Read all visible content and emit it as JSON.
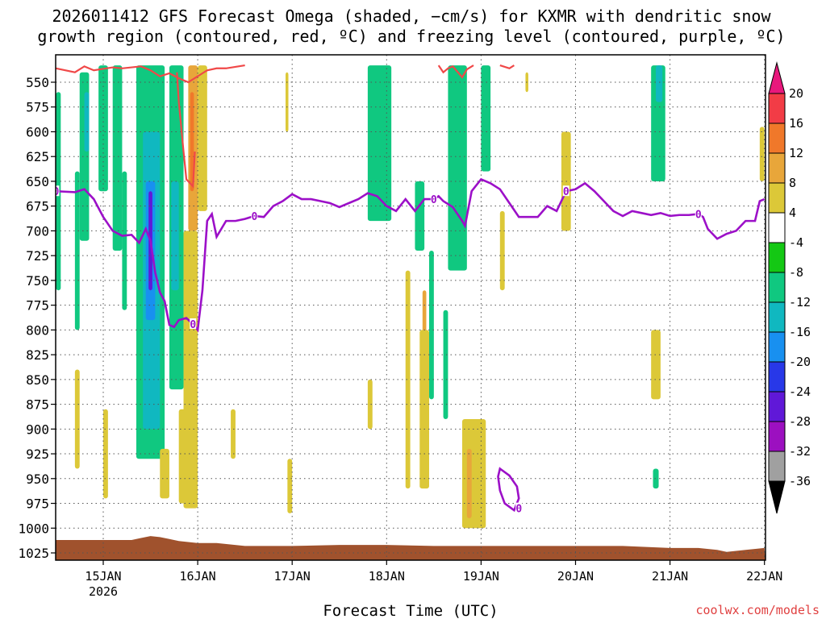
{
  "chart_data": {
    "type": "heatmap",
    "title_line1": "2026011412 GFS Forecast Omega (shaded, −cm/s) for KXMR with dendritic snow",
    "title_line2": "growth region (contoured, red, ºC) and freezing level (contoured, purple, ºC)",
    "xlabel": "Forecast Time (UTC)",
    "x_ticks": [
      {
        "t": 0,
        "label": "15JAN",
        "sub": "2026"
      },
      {
        "t": 1,
        "label": "16JAN",
        "sub": ""
      },
      {
        "t": 2,
        "label": "17JAN",
        "sub": ""
      },
      {
        "t": 3,
        "label": "18JAN",
        "sub": ""
      },
      {
        "t": 4,
        "label": "19JAN",
        "sub": ""
      },
      {
        "t": 5,
        "label": "20JAN",
        "sub": ""
      },
      {
        "t": 6,
        "label": "21JAN",
        "sub": ""
      },
      {
        "t": 7,
        "label": "22JAN",
        "sub": ""
      }
    ],
    "xlim": [
      -0.5,
      7.0
    ],
    "y_ticks": [
      550,
      575,
      600,
      625,
      650,
      675,
      700,
      725,
      750,
      775,
      800,
      825,
      850,
      875,
      900,
      925,
      950,
      975,
      1000,
      1025
    ],
    "ylim_hpa": [
      530,
      1035
    ],
    "colorbar": {
      "labels": [
        "20",
        "16",
        "12",
        "8",
        "4",
        "-4",
        "-8",
        "-12",
        "-16",
        "-20",
        "-24",
        "-28",
        "-32",
        "-36"
      ],
      "colors": [
        "#f23c46",
        "#f0782a",
        "#e8a63a",
        "#dcc838",
        "#ffffff",
        "#14c814",
        "#10c880",
        "#10b8c0",
        "#1890f0",
        "#2838e8",
        "#6018d8",
        "#9c10c0",
        "#a0a0a0"
      ],
      "top_arrow": "#e8187c",
      "bottom_arrow": "#000000"
    },
    "freezing_level": {
      "label": "0",
      "color": "#9c10c8",
      "points": [
        [
          -0.5,
          660
        ],
        [
          -0.3,
          661
        ],
        [
          -0.2,
          658
        ],
        [
          -0.1,
          668
        ],
        [
          0.0,
          686
        ],
        [
          0.1,
          700
        ],
        [
          0.2,
          705
        ],
        [
          0.3,
          704
        ],
        [
          0.38,
          712
        ],
        [
          0.45,
          698
        ],
        [
          0.5,
          710
        ],
        [
          0.55,
          742
        ],
        [
          0.6,
          762
        ],
        [
          0.65,
          771
        ],
        [
          0.7,
          795
        ],
        [
          0.75,
          797
        ],
        [
          0.8,
          790
        ],
        [
          0.88,
          788
        ],
        [
          0.95,
          794
        ],
        [
          1.0,
          800
        ],
        [
          1.05,
          760
        ],
        [
          1.1,
          690
        ],
        [
          1.15,
          683
        ],
        [
          1.2,
          706
        ],
        [
          1.3,
          690
        ],
        [
          1.4,
          690
        ],
        [
          1.5,
          688
        ],
        [
          1.6,
          685
        ],
        [
          1.7,
          686
        ],
        [
          1.8,
          675
        ],
        [
          1.9,
          670
        ],
        [
          2.0,
          663
        ],
        [
          2.1,
          668
        ],
        [
          2.2,
          668
        ],
        [
          2.3,
          670
        ],
        [
          2.4,
          672
        ],
        [
          2.5,
          676
        ],
        [
          2.6,
          672
        ],
        [
          2.7,
          668
        ],
        [
          2.8,
          662
        ],
        [
          2.9,
          665
        ],
        [
          3.0,
          675
        ],
        [
          3.1,
          680
        ],
        [
          3.2,
          668
        ],
        [
          3.3,
          680
        ],
        [
          3.4,
          668
        ],
        [
          3.5,
          668
        ],
        [
          3.55,
          665
        ],
        [
          3.6,
          670
        ],
        [
          3.7,
          676
        ],
        [
          3.8,
          690
        ],
        [
          3.83,
          695
        ],
        [
          3.9,
          660
        ],
        [
          4.0,
          648
        ],
        [
          4.1,
          652
        ],
        [
          4.2,
          658
        ],
        [
          4.3,
          672
        ],
        [
          4.4,
          686
        ],
        [
          4.5,
          686
        ],
        [
          4.6,
          686
        ],
        [
          4.7,
          675
        ],
        [
          4.8,
          680
        ],
        [
          4.9,
          660
        ],
        [
          5.0,
          658
        ],
        [
          5.1,
          652
        ],
        [
          5.2,
          660
        ],
        [
          5.3,
          670
        ],
        [
          5.4,
          680
        ],
        [
          5.5,
          685
        ],
        [
          5.6,
          680
        ],
        [
          5.7,
          682
        ],
        [
          5.8,
          684
        ],
        [
          5.9,
          682
        ],
        [
          6.0,
          685
        ],
        [
          6.1,
          684
        ],
        [
          6.2,
          684
        ],
        [
          6.3,
          683
        ],
        [
          6.35,
          686
        ],
        [
          6.4,
          698
        ],
        [
          6.5,
          708
        ],
        [
          6.6,
          703
        ],
        [
          6.7,
          700
        ],
        [
          6.8,
          690
        ],
        [
          6.9,
          690
        ],
        [
          6.95,
          670
        ],
        [
          7.0,
          668
        ]
      ]
    },
    "freezing_loop": [
      [
        4.2,
        940
      ],
      [
        4.3,
        947
      ],
      [
        4.38,
        958
      ],
      [
        4.4,
        970
      ],
      [
        4.35,
        982
      ],
      [
        4.25,
        975
      ],
      [
        4.2,
        962
      ],
      [
        4.18,
        948
      ]
    ],
    "dgz_contours": [
      {
        "points": [
          [
            -0.5,
            536
          ],
          [
            -0.3,
            540
          ],
          [
            -0.2,
            534
          ],
          [
            -0.1,
            538
          ],
          [
            0.1,
            535
          ],
          [
            0.2,
            536
          ],
          [
            0.4,
            534
          ],
          [
            0.5,
            538
          ],
          [
            0.6,
            544
          ],
          [
            0.7,
            541
          ],
          [
            0.8,
            546
          ],
          [
            0.9,
            550
          ],
          [
            1.0,
            544
          ],
          [
            1.1,
            538
          ],
          [
            1.2,
            536
          ],
          [
            1.3,
            536
          ],
          [
            1.5,
            533
          ]
        ]
      },
      {
        "points": [
          [
            0.78,
            540
          ],
          [
            0.8,
            570
          ],
          [
            0.85,
            620
          ],
          [
            0.88,
            648
          ],
          [
            0.95,
            655
          ],
          [
            0.97,
            620
          ]
        ]
      },
      {
        "points": [
          [
            3.55,
            533
          ],
          [
            3.6,
            540
          ],
          [
            3.65,
            536
          ],
          [
            3.7,
            534
          ],
          [
            3.8,
            545
          ],
          [
            3.85,
            537
          ],
          [
            3.92,
            533
          ]
        ]
      },
      {
        "points": [
          [
            4.2,
            533
          ],
          [
            4.3,
            536
          ],
          [
            4.35,
            533
          ]
        ]
      }
    ],
    "omega_regions": [
      {
        "v": -8,
        "x0": -0.5,
        "x1": -0.45,
        "y0": 560,
        "y1": 760
      },
      {
        "v": -8,
        "x0": -0.3,
        "x1": -0.25,
        "y0": 640,
        "y1": 800
      },
      {
        "v": -8,
        "x0": -0.25,
        "x1": -0.15,
        "y0": 540,
        "y1": 710
      },
      {
        "v": -12,
        "x0": -0.2,
        "x1": -0.15,
        "y0": 560,
        "y1": 620
      },
      {
        "v": -8,
        "x0": -0.05,
        "x1": 0.05,
        "y0": 533,
        "y1": 660
      },
      {
        "v": -8,
        "x0": 0.1,
        "x1": 0.2,
        "y0": 533,
        "y1": 720
      },
      {
        "v": -8,
        "x0": 0.2,
        "x1": 0.25,
        "y0": 640,
        "y1": 780
      },
      {
        "v": -8,
        "x0": 0.35,
        "x1": 0.65,
        "y0": 533,
        "y1": 930
      },
      {
        "v": -12,
        "x0": 0.42,
        "x1": 0.6,
        "y0": 600,
        "y1": 900
      },
      {
        "v": -16,
        "x0": 0.45,
        "x1": 0.55,
        "y0": 650,
        "y1": 790
      },
      {
        "v": -24,
        "x0": 0.48,
        "x1": 0.52,
        "y0": 660,
        "y1": 760
      },
      {
        "v": -8,
        "x0": 0.7,
        "x1": 0.85,
        "y0": 533,
        "y1": 860
      },
      {
        "v": -12,
        "x0": 0.72,
        "x1": 0.8,
        "y0": 650,
        "y1": 760
      },
      {
        "v": 8,
        "x0": 0.9,
        "x1": 1.0,
        "y0": 533,
        "y1": 700
      },
      {
        "v": 12,
        "x0": 0.92,
        "x1": 0.96,
        "y0": 560,
        "y1": 660
      },
      {
        "v": 4,
        "x0": 0.85,
        "x1": 1.0,
        "y0": 700,
        "y1": 980
      },
      {
        "v": 4,
        "x0": 1.0,
        "x1": 1.1,
        "y0": 533,
        "y1": 680
      },
      {
        "v": 4,
        "x0": 0.6,
        "x1": 0.7,
        "y0": 920,
        "y1": 970
      },
      {
        "v": 4,
        "x0": -0.3,
        "x1": -0.25,
        "y0": 840,
        "y1": 940
      },
      {
        "v": 4,
        "x0": 0.0,
        "x1": 0.05,
        "y0": 880,
        "y1": 970
      },
      {
        "v": 4,
        "x0": 0.8,
        "x1": 0.9,
        "y0": 880,
        "y1": 975
      },
      {
        "v": 4,
        "x0": 1.35,
        "x1": 1.4,
        "y0": 880,
        "y1": 930
      },
      {
        "v": 4,
        "x0": 1.95,
        "x1": 2.0,
        "y0": 930,
        "y1": 985
      },
      {
        "v": 4,
        "x0": 1.93,
        "x1": 1.96,
        "y0": 540,
        "y1": 600
      },
      {
        "v": -8,
        "x0": 2.8,
        "x1": 3.05,
        "y0": 533,
        "y1": 690
      },
      {
        "v": -8,
        "x0": 3.3,
        "x1": 3.4,
        "y0": 650,
        "y1": 720
      },
      {
        "v": -8,
        "x0": 3.45,
        "x1": 3.5,
        "y0": 720,
        "y1": 870
      },
      {
        "v": 4,
        "x0": 3.2,
        "x1": 3.25,
        "y0": 740,
        "y1": 960
      },
      {
        "v": 8,
        "x0": 3.38,
        "x1": 3.42,
        "y0": 760,
        "y1": 840
      },
      {
        "v": 4,
        "x0": 3.35,
        "x1": 3.45,
        "y0": 800,
        "y1": 960
      },
      {
        "v": 4,
        "x0": 2.8,
        "x1": 2.85,
        "y0": 850,
        "y1": 900
      },
      {
        "v": -8,
        "x0": 3.6,
        "x1": 3.65,
        "y0": 780,
        "y1": 890
      },
      {
        "v": -8,
        "x0": 3.65,
        "x1": 3.85,
        "y0": 533,
        "y1": 740
      },
      {
        "v": -8,
        "x0": 4.0,
        "x1": 4.1,
        "y0": 533,
        "y1": 640
      },
      {
        "v": 4,
        "x0": 3.8,
        "x1": 4.05,
        "y0": 890,
        "y1": 1000
      },
      {
        "v": 8,
        "x0": 3.85,
        "x1": 3.9,
        "y0": 920,
        "y1": 990
      },
      {
        "v": 4,
        "x0": 4.2,
        "x1": 4.25,
        "y0": 680,
        "y1": 760
      },
      {
        "v": 4,
        "x0": 4.47,
        "x1": 4.5,
        "y0": 540,
        "y1": 560
      },
      {
        "v": 4,
        "x0": 4.85,
        "x1": 4.95,
        "y0": 600,
        "y1": 700
      },
      {
        "v": -8,
        "x0": 5.8,
        "x1": 5.95,
        "y0": 533,
        "y1": 650
      },
      {
        "v": -12,
        "x0": 5.85,
        "x1": 5.92,
        "y0": 533,
        "y1": 570
      },
      {
        "v": 4,
        "x0": 5.8,
        "x1": 5.9,
        "y0": 800,
        "y1": 870
      },
      {
        "v": -8,
        "x0": 5.82,
        "x1": 5.88,
        "y0": 940,
        "y1": 960
      },
      {
        "v": 4,
        "x0": 6.95,
        "x1": 7.0,
        "y0": 595,
        "y1": 650
      }
    ],
    "terrain": {
      "color": "#a0522d",
      "points": [
        [
          -0.5,
          1012
        ],
        [
          0.0,
          1012
        ],
        [
          0.3,
          1012
        ],
        [
          0.4,
          1010
        ],
        [
          0.5,
          1008
        ],
        [
          0.6,
          1009
        ],
        [
          0.7,
          1011
        ],
        [
          0.8,
          1013
        ],
        [
          1.0,
          1015
        ],
        [
          1.2,
          1015
        ],
        [
          1.5,
          1018
        ],
        [
          2.0,
          1018
        ],
        [
          2.5,
          1017
        ],
        [
          3.0,
          1017
        ],
        [
          3.5,
          1018
        ],
        [
          4.0,
          1018
        ],
        [
          4.5,
          1018
        ],
        [
          5.0,
          1018
        ],
        [
          5.5,
          1018
        ],
        [
          6.0,
          1020
        ],
        [
          6.3,
          1020
        ],
        [
          6.5,
          1022
        ],
        [
          6.6,
          1024
        ],
        [
          6.8,
          1022
        ],
        [
          7.0,
          1020
        ]
      ]
    }
  },
  "footer": {
    "credit": "coolwx.com/models"
  }
}
